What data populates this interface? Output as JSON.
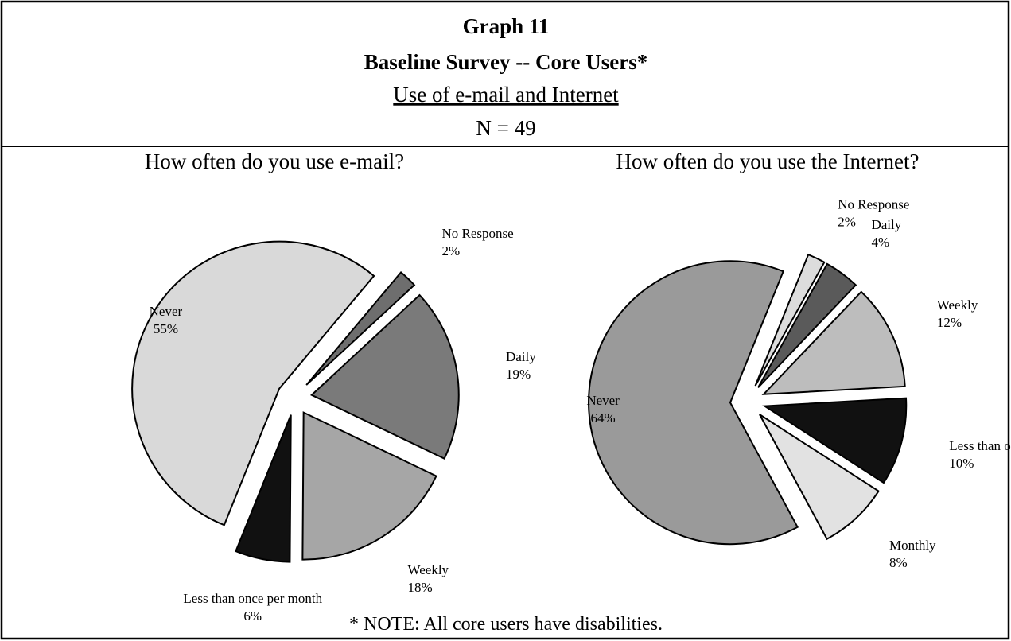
{
  "header": {
    "graph": "Graph 11",
    "title": "Baseline Survey -- Core Users*",
    "subtitle": "Use of e-mail and Internet",
    "n": "N = 49"
  },
  "chart_data": [
    {
      "type": "pie",
      "title": "How often do you use e-mail?",
      "categories": [
        "No Response",
        "Daily",
        "Weekly",
        "Less than once per month",
        "Never"
      ],
      "values": [
        2,
        19,
        18,
        6,
        55
      ],
      "value_labels": [
        "2%",
        "19%",
        "18%",
        "6%",
        "55%"
      ],
      "colors": [
        "#6e6e6e",
        "#7a7a7a",
        "#a6a6a6",
        "#111111",
        "#d9d9d9"
      ]
    },
    {
      "type": "pie",
      "title": "How often do you use the Internet?",
      "categories": [
        "No Response",
        "Daily",
        "Weekly",
        "Less than once per month",
        "Monthly",
        "Never"
      ],
      "values": [
        2,
        4,
        12,
        10,
        8,
        64
      ],
      "value_labels": [
        "2%",
        "4%",
        "12%",
        "10%",
        "8%",
        "64%"
      ],
      "colors": [
        "#dcdcdc",
        "#5a5a5a",
        "#bdbdbd",
        "#111111",
        "#e2e2e2",
        "#9a9a9a"
      ]
    }
  ],
  "note": "* NOTE:  All core users have disabilities."
}
